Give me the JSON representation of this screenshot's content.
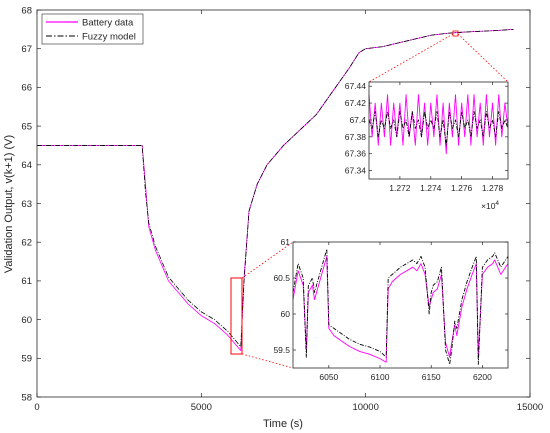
{
  "chart_data": [
    {
      "id": "main",
      "type": "line",
      "xlabel": "Time (s)",
      "ylabel": "Validation Output, v(k+1) (V)",
      "xlim": [
        0,
        15000
      ],
      "ylim": [
        58,
        68
      ],
      "xticks": [
        0,
        5000,
        10000,
        15000
      ],
      "xtick_labels": [
        "0",
        "5000",
        "10000",
        "15000"
      ],
      "yticks": [
        58,
        59,
        60,
        61,
        62,
        63,
        64,
        65,
        66,
        67,
        68
      ],
      "ytick_labels": [
        "58",
        "59",
        "60",
        "61",
        "62",
        "63",
        "64",
        "65",
        "66",
        "67",
        "68"
      ],
      "grid": false,
      "legend": {
        "placement": "top-left"
      },
      "series": [
        {
          "name": "Battery data",
          "color": "#ff00ff",
          "style": "solid",
          "x": [
            0,
            3200,
            3300,
            3400,
            3600,
            3800,
            4000,
            4300,
            4600,
            5000,
            5400,
            5800,
            6200,
            6300,
            6450,
            6700,
            7000,
            7500,
            8000,
            8500,
            9000,
            9500,
            9800,
            10000,
            10500,
            11000,
            11500,
            12000,
            12500,
            13000,
            13500,
            14000,
            14500
          ],
          "y": [
            64.5,
            64.5,
            63.5,
            62.4,
            61.8,
            61.4,
            61.0,
            60.7,
            60.4,
            60.1,
            59.9,
            59.6,
            59.2,
            61.1,
            62.8,
            63.5,
            64.0,
            64.5,
            64.9,
            65.3,
            65.9,
            66.5,
            66.9,
            67.0,
            67.05,
            67.15,
            67.25,
            67.35,
            67.4,
            67.43,
            67.45,
            67.47,
            67.5
          ]
        },
        {
          "name": "Fuzzy model",
          "color": "#000000",
          "style": "dash-dot",
          "x": [
            0,
            3200,
            3300,
            3400,
            3600,
            3800,
            4000,
            4300,
            4600,
            5000,
            5400,
            5800,
            6200,
            6300,
            6450,
            6700,
            7000,
            7500,
            8000,
            8500,
            9000,
            9500,
            9800,
            10000,
            10500,
            11000,
            11500,
            12000,
            12500,
            13000,
            13500,
            14000,
            14500
          ],
          "y": [
            64.5,
            64.5,
            63.3,
            62.5,
            61.9,
            61.5,
            61.1,
            60.8,
            60.5,
            60.2,
            60.0,
            59.7,
            59.3,
            61.0,
            62.8,
            63.5,
            64.0,
            64.5,
            64.9,
            65.3,
            65.9,
            66.5,
            66.9,
            67.0,
            67.05,
            67.15,
            67.25,
            67.35,
            67.4,
            67.43,
            67.45,
            67.47,
            67.5
          ]
        }
      ]
    },
    {
      "id": "inset-top",
      "type": "line",
      "xlim": [
        12700,
        12790
      ],
      "ylim": [
        67.33,
        67.445
      ],
      "xticks": [
        12720,
        12740,
        12760,
        12780
      ],
      "xtick_labels": [
        "1.272",
        "1.274",
        "1.276",
        "1.278"
      ],
      "x_exponent": "×10",
      "x_exponent_power": "4",
      "yticks": [
        67.34,
        67.36,
        67.38,
        67.4,
        67.42,
        67.44
      ],
      "ytick_labels": [
        "67.34",
        "67.36",
        "67.38",
        "67.4",
        "67.42",
        "67.44"
      ],
      "grid": false,
      "series": [
        {
          "color": "#ff00ff",
          "style": "solid",
          "x": [
            12700,
            12702,
            12704,
            12706,
            12708,
            12710,
            12712,
            12714,
            12716,
            12718,
            12720,
            12722,
            12724,
            12726,
            12728,
            12730,
            12732,
            12734,
            12736,
            12738,
            12740,
            12742,
            12744,
            12746,
            12748,
            12750,
            12752,
            12754,
            12756,
            12758,
            12760,
            12762,
            12764,
            12766,
            12768,
            12770,
            12772,
            12774,
            12776,
            12778,
            12780,
            12782,
            12784,
            12786,
            12788,
            12790
          ],
          "y": [
            67.43,
            67.38,
            67.42,
            67.37,
            67.42,
            67.38,
            67.43,
            67.37,
            67.42,
            67.38,
            67.42,
            67.37,
            67.43,
            67.38,
            67.41,
            67.37,
            67.43,
            67.38,
            67.42,
            67.37,
            67.42,
            67.38,
            67.43,
            67.37,
            67.42,
            67.36,
            67.42,
            67.38,
            67.43,
            67.37,
            67.42,
            67.38,
            67.43,
            67.37,
            67.43,
            67.38,
            67.42,
            67.37,
            67.43,
            67.38,
            67.42,
            67.37,
            67.43,
            67.38,
            67.42,
            67.39
          ]
        },
        {
          "color": "#000000",
          "style": "dash-dot",
          "x": [
            12700,
            12702,
            12704,
            12706,
            12708,
            12710,
            12712,
            12714,
            12716,
            12718,
            12720,
            12722,
            12724,
            12726,
            12728,
            12730,
            12732,
            12734,
            12736,
            12738,
            12740,
            12742,
            12744,
            12746,
            12748,
            12750,
            12752,
            12754,
            12756,
            12758,
            12760,
            12762,
            12764,
            12766,
            12768,
            12770,
            12772,
            12774,
            12776,
            12778,
            12780,
            12782,
            12784,
            12786,
            12788,
            12790
          ],
          "y": [
            67.4,
            67.39,
            67.41,
            67.38,
            67.4,
            67.39,
            67.41,
            67.39,
            67.4,
            67.38,
            67.41,
            67.39,
            67.4,
            67.38,
            67.41,
            67.39,
            67.4,
            67.38,
            67.41,
            67.39,
            67.4,
            67.39,
            67.41,
            67.38,
            67.4,
            67.37,
            67.41,
            67.39,
            67.4,
            67.38,
            67.41,
            67.39,
            67.4,
            67.38,
            67.41,
            67.39,
            67.4,
            67.38,
            67.41,
            67.39,
            67.4,
            67.38,
            67.41,
            67.39,
            67.4,
            67.39
          ]
        }
      ]
    },
    {
      "id": "inset-bottom",
      "type": "line",
      "xlim": [
        6015,
        6225
      ],
      "ylim": [
        59.25,
        61.0
      ],
      "xticks": [
        6050,
        6100,
        6150,
        6200
      ],
      "xtick_labels": [
        "6050",
        "6100",
        "6150",
        "6200"
      ],
      "yticks": [
        59.5,
        60,
        60.5,
        61
      ],
      "ytick_labels": [
        "59.5",
        "60",
        "60.5",
        "61"
      ],
      "grid": false,
      "series": [
        {
          "color": "#ff00ff",
          "style": "solid",
          "x": [
            6015,
            6020,
            6025,
            6028,
            6030,
            6034,
            6036,
            6040,
            6044,
            6048,
            6050,
            6055,
            6060,
            6070,
            6080,
            6090,
            6100,
            6106,
            6108,
            6112,
            6116,
            6120,
            6126,
            6132,
            6136,
            6140,
            6144,
            6148,
            6150,
            6152,
            6156,
            6160,
            6164,
            6168,
            6170,
            6173,
            6175,
            6180,
            6185,
            6190,
            6194,
            6196,
            6200,
            6205,
            6210,
            6212,
            6218,
            6225
          ],
          "y": [
            60.2,
            60.6,
            60.4,
            59.5,
            60.3,
            60.4,
            60.2,
            60.4,
            60.6,
            60.8,
            59.8,
            59.7,
            59.65,
            59.55,
            59.48,
            59.44,
            59.38,
            59.33,
            60.35,
            60.45,
            60.5,
            60.55,
            60.6,
            60.65,
            60.6,
            60.7,
            60.55,
            60.1,
            60.2,
            60.3,
            60.35,
            60.55,
            59.6,
            59.4,
            59.6,
            59.85,
            59.7,
            60.1,
            60.35,
            60.55,
            60.7,
            59.4,
            60.55,
            60.65,
            60.7,
            60.75,
            60.55,
            60.7
          ]
        },
        {
          "color": "#000000",
          "style": "dash-dot",
          "x": [
            6015,
            6020,
            6025,
            6028,
            6030,
            6034,
            6036,
            6040,
            6044,
            6048,
            6050,
            6055,
            6060,
            6070,
            6080,
            6090,
            6100,
            6106,
            6108,
            6112,
            6116,
            6120,
            6126,
            6132,
            6136,
            6140,
            6144,
            6148,
            6150,
            6152,
            6156,
            6160,
            6164,
            6168,
            6170,
            6173,
            6175,
            6180,
            6185,
            6190,
            6194,
            6196,
            6200,
            6205,
            6210,
            6212,
            6218,
            6225
          ],
          "y": [
            60.3,
            60.7,
            60.5,
            59.4,
            60.4,
            60.5,
            60.3,
            60.5,
            60.7,
            60.9,
            59.85,
            59.8,
            59.75,
            59.65,
            59.58,
            59.54,
            59.48,
            59.4,
            60.5,
            60.55,
            60.6,
            60.65,
            60.7,
            60.75,
            60.7,
            60.8,
            60.65,
            60.0,
            60.3,
            60.4,
            60.45,
            60.65,
            59.5,
            59.3,
            59.5,
            59.9,
            59.8,
            60.2,
            60.45,
            60.65,
            60.8,
            59.3,
            60.65,
            60.75,
            60.8,
            60.85,
            60.65,
            60.8
          ]
        }
      ]
    }
  ]
}
